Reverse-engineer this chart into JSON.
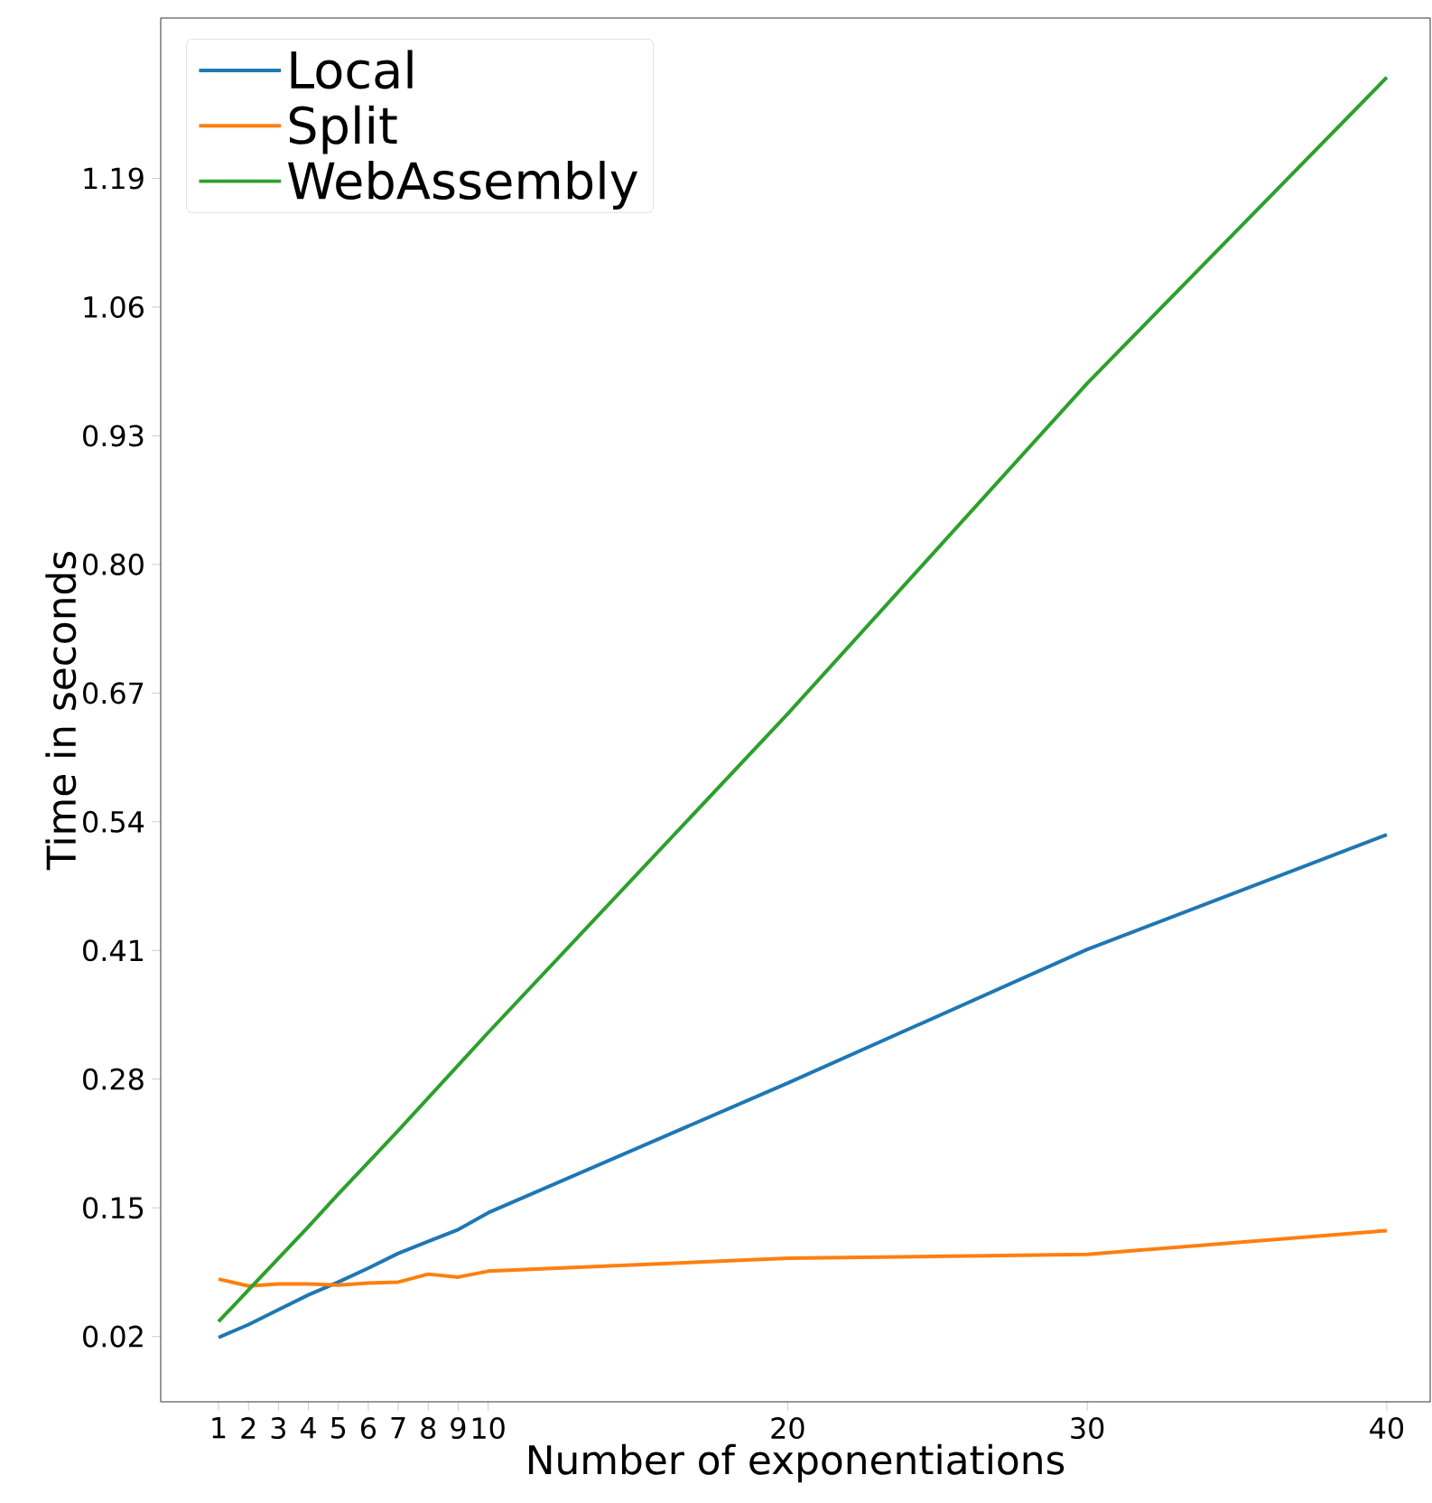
{
  "chart_data": {
    "type": "line",
    "xlabel": "Number of exponentiations",
    "ylabel": "Time in seconds",
    "x": [
      1,
      2,
      3,
      4,
      5,
      6,
      7,
      8,
      9,
      10,
      20,
      30,
      40
    ],
    "series": [
      {
        "name": "Local",
        "color": "#1f77b4",
        "values": [
          0.019,
          0.032,
          0.047,
          0.062,
          0.075,
          0.089,
          0.104,
          0.116,
          0.128,
          0.145,
          0.276,
          0.411,
          0.527
        ]
      },
      {
        "name": "Split",
        "color": "#ff7f0e",
        "values": [
          0.078,
          0.071,
          0.073,
          0.073,
          0.072,
          0.074,
          0.075,
          0.083,
          0.08,
          0.086,
          0.099,
          0.103,
          0.127
        ]
      },
      {
        "name": "WebAssembly",
        "color": "#2ca02c",
        "values": [
          0.035,
          0.067,
          0.099,
          0.131,
          0.164,
          0.196,
          0.228,
          0.261,
          0.294,
          0.327,
          0.649,
          0.983,
          1.292
        ]
      }
    ],
    "xlim": [
      -0.93,
      41.45
    ],
    "ylim": [
      -0.046,
      1.352
    ],
    "xticks": [
      1,
      2,
      3,
      4,
      5,
      6,
      7,
      8,
      9,
      10,
      20,
      30,
      40
    ],
    "yticks": [
      {
        "value": 0.02,
        "label": "0.02"
      },
      {
        "value": 0.15,
        "label": "0.15"
      },
      {
        "value": 0.28,
        "label": "0.28"
      },
      {
        "value": 0.41,
        "label": "0.41"
      },
      {
        "value": 0.54,
        "label": "0.54"
      },
      {
        "value": 0.67,
        "label": "0.67"
      },
      {
        "value": 0.8,
        "label": "0.80"
      },
      {
        "value": 0.93,
        "label": "0.93"
      },
      {
        "value": 1.06,
        "label": "1.06"
      },
      {
        "value": 1.19,
        "label": "1.19"
      }
    ],
    "grid": false,
    "legend": "top left",
    "marker": "none",
    "line_style": "solid"
  }
}
